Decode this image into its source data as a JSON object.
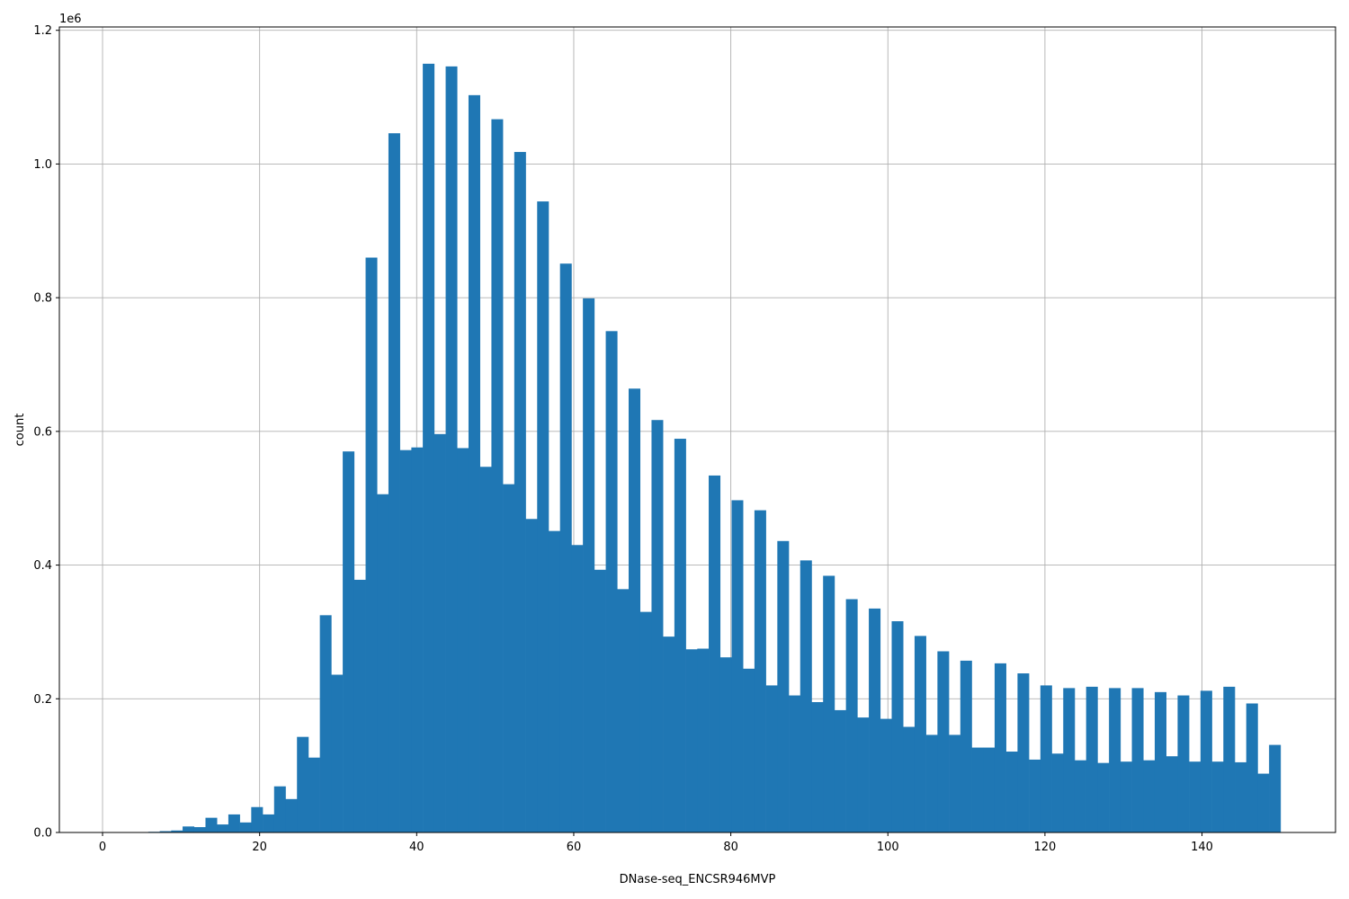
{
  "chart_data": {
    "type": "bar",
    "title": "",
    "xlabel": "DNase-seq_ENCSR946MVP",
    "ylabel": "count",
    "y_scale_label": "1e6",
    "y_multiplier": 1000000,
    "xlim": [
      -5.5,
      157
    ],
    "ylim": [
      0,
      1.205
    ],
    "bin_range": [
      0,
      150
    ],
    "x_ticks": [
      0,
      20,
      40,
      60,
      80,
      100,
      120,
      140
    ],
    "x_tick_labels": [
      "0",
      "20",
      "40",
      "60",
      "80",
      "100",
      "120",
      "140"
    ],
    "y_ticks": [
      0,
      0.2,
      0.4,
      0.6,
      0.8,
      1.0,
      1.2
    ],
    "y_tick_labels": [
      "0.0",
      "0.2",
      "0.4",
      "0.6",
      "0.8",
      "1.0",
      "1.2"
    ],
    "grid": true,
    "bar_color": "#1f77b4",
    "grid_color": "#b0b0b0",
    "values": [
      0,
      0,
      0,
      0,
      0.001,
      0.002,
      0.003,
      0.009,
      0.008,
      0.022,
      0.012,
      0.027,
      0.015,
      0.038,
      0.027,
      0.069,
      0.05,
      0.143,
      0.112,
      0.325,
      0.236,
      0.57,
      0.378,
      0.86,
      0.506,
      1.046,
      0.572,
      0.576,
      1.15,
      0.596,
      1.146,
      0.575,
      1.103,
      0.547,
      1.067,
      0.521,
      1.018,
      0.469,
      0.944,
      0.451,
      0.851,
      0.43,
      0.799,
      0.393,
      0.75,
      0.364,
      0.664,
      0.33,
      0.617,
      0.293,
      0.589,
      0.274,
      0.275,
      0.534,
      0.262,
      0.497,
      0.245,
      0.482,
      0.22,
      0.436,
      0.205,
      0.407,
      0.195,
      0.384,
      0.183,
      0.349,
      0.172,
      0.335,
      0.17,
      0.316,
      0.158,
      0.294,
      0.146,
      0.271,
      0.146,
      0.257,
      0.127,
      0.127,
      0.253,
      0.121,
      0.238,
      0.109,
      0.22,
      0.118,
      0.216,
      0.108,
      0.218,
      0.104,
      0.216,
      0.106,
      0.216,
      0.108,
      0.21,
      0.114,
      0.205,
      0.106,
      0.212,
      0.106,
      0.218,
      0.105,
      0.193,
      0.088,
      0.131
    ]
  }
}
